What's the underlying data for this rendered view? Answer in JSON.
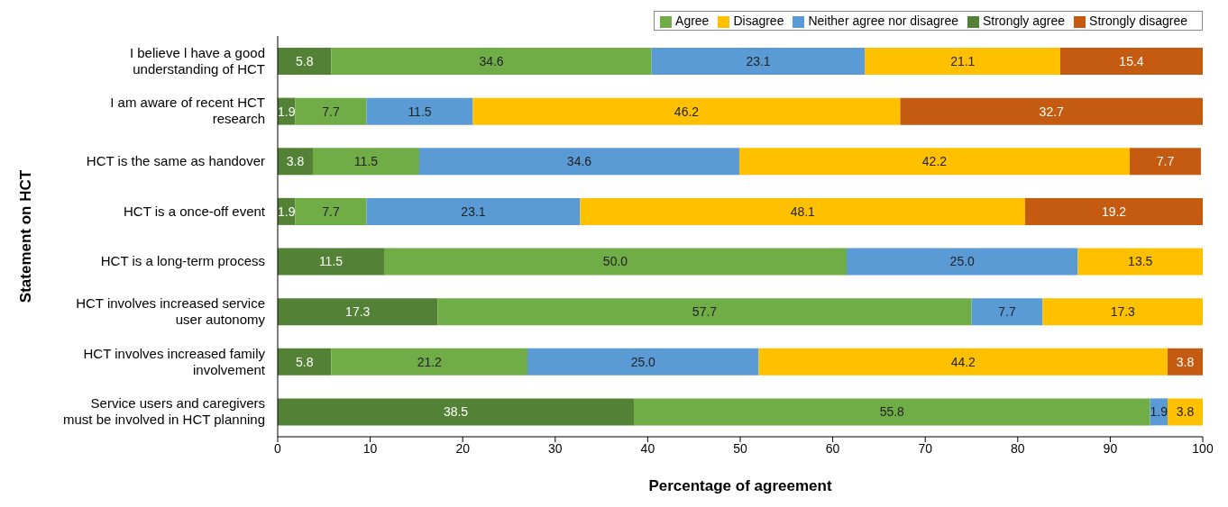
{
  "chart_data": {
    "type": "bar",
    "orientation": "horizontal",
    "stacked": true,
    "ylabel": "Statement on HCT",
    "xlabel": "Percentage of agreement",
    "categories": [
      "I believe l have a good understanding of HCT",
      "I am aware of recent HCT research",
      "HCT is the same as handover",
      "HCT is a once-off event",
      "HCT is a long-term process",
      "HCT involves increased service user autonomy",
      "HCT involves increased family involvement",
      "Service users and caregivers must be involved in HCT planning"
    ],
    "series": [
      {
        "name": "Strongly agree",
        "color": "#538135",
        "values": [
          5.8,
          1.9,
          3.8,
          1.9,
          11.5,
          17.3,
          5.8,
          38.5
        ],
        "value_labels": [
          "5.8",
          "1.9",
          "3.8",
          "1.9",
          "11.5",
          "17.3",
          "5.8",
          "38.5"
        ]
      },
      {
        "name": "Agree",
        "color": "#70ad47",
        "values": [
          34.6,
          7.7,
          11.5,
          7.7,
          50.0,
          57.7,
          21.2,
          55.8
        ],
        "value_labels": [
          "34.6",
          "7.7",
          "11.5",
          "7.7",
          "50.0",
          "57.7",
          "21.2",
          "55.8"
        ]
      },
      {
        "name": "Neither agree nor disagree",
        "color": "#5b9bd5",
        "values": [
          23.1,
          11.5,
          34.6,
          23.1,
          25.0,
          7.7,
          25.0,
          1.9
        ],
        "value_labels": [
          "23.1",
          "11.5",
          "34.6",
          "23.1",
          "25.0",
          "7.7",
          "25.0",
          "1.9"
        ]
      },
      {
        "name": "Disagree",
        "color": "#ffc000",
        "values": [
          21.1,
          46.2,
          42.2,
          48.1,
          13.5,
          17.3,
          44.2,
          3.8
        ],
        "value_labels": [
          "21.1",
          "46.2",
          "42.2",
          "48.1",
          "13.5",
          "17.3",
          "44.2",
          "3.8"
        ]
      },
      {
        "name": "Strongly disagree",
        "color": "#c55a11",
        "values": [
          15.4,
          32.7,
          7.7,
          19.2,
          null,
          null,
          3.8,
          null
        ],
        "value_labels": [
          "15.4",
          "32.7",
          "7.7",
          "19.2",
          null,
          null,
          "3.8",
          null
        ]
      }
    ],
    "xlim": [
      0,
      100
    ],
    "xticks": [
      0,
      10,
      20,
      30,
      40,
      50,
      60,
      70,
      80,
      90,
      100
    ],
    "grid": false,
    "legend": "top right"
  }
}
